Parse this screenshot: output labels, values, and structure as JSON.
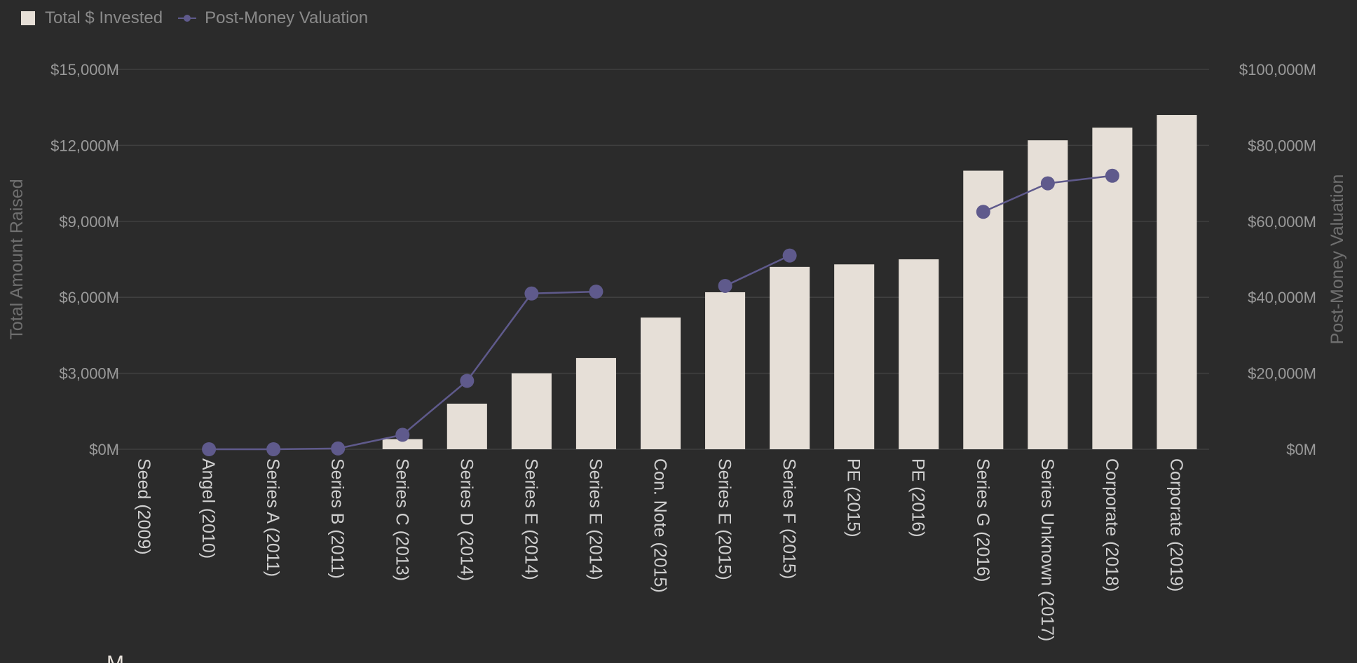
{
  "colors": {
    "background": "#2b2b2b",
    "bar": "#e6dfd7",
    "line": "#5f5a8c",
    "grid": "#404040",
    "axis_text": "#9a9a9a",
    "axis_title": "#6f6f6f",
    "legend_text": "#8a8a8a"
  },
  "legend": {
    "bar_label": "Total $ Invested",
    "line_label": "Post-Money Valuation"
  },
  "chart_data": {
    "type": "bar",
    "legend_position": "top-left",
    "grid": true,
    "categories": [
      "Seed (2009)",
      "Angel (2010)",
      "Series A (2011)",
      "Series B (2011)",
      "Series C (2013)",
      "Series D (2014)",
      "Series E (2014)",
      "Series E (2014)",
      "Con. Note (2015)",
      "Series E (2015)",
      "Series F (2015)",
      "PE (2015)",
      "PE (2016)",
      "Series G (2016)",
      "Series Unknown (2017)",
      "Corporate (2018)",
      "Corporate (2019)"
    ],
    "series": [
      {
        "name": "Total $ Invested",
        "type": "bar",
        "axis": "left",
        "values": [
          0,
          0,
          0,
          0,
          400,
          1800,
          3000,
          3600,
          5200,
          6200,
          7200,
          7300,
          7500,
          11000,
          12200,
          12700,
          13200
        ]
      },
      {
        "name": "Post-Money Valuation",
        "type": "line",
        "axis": "right",
        "values": [
          null,
          0,
          0,
          200,
          3800,
          18000,
          41000,
          41500,
          null,
          43000,
          51000,
          null,
          null,
          62500,
          70000,
          72000,
          null
        ]
      }
    ],
    "ylabel": "Total Amount Raised",
    "y2label": "Post-Money Valuation",
    "ylim": [
      0,
      15000
    ],
    "y2lim": [
      0,
      100000
    ],
    "yticks": [
      "$0M",
      "$3,000M",
      "$6,000M",
      "$9,000M",
      "$12,000M",
      "$15,000M"
    ],
    "y2ticks": [
      "$0M",
      "$20,000M",
      "$40,000M",
      "$60,000M",
      "$80,000M",
      "$100,000M"
    ],
    "unit": "M"
  },
  "stray_mark": "M"
}
